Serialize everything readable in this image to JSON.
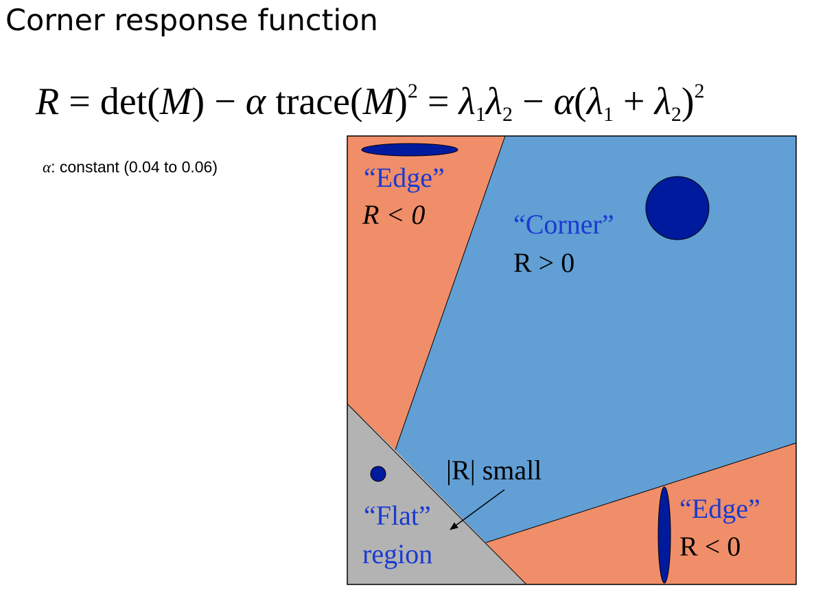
{
  "title": "Corner response function",
  "formula": {
    "lhs": "R",
    "equals_1": "=",
    "det": "det(",
    "m1": "M",
    "close1": ")",
    "minus_1": "−",
    "alpha_1": "α",
    "trace": " trace(",
    "m2": "M",
    "close2": ")",
    "sq_1": "2",
    "equals_2": "=",
    "lambda_a": "λ",
    "sub_1a": "1",
    "lambda_b": "λ",
    "sub_2a": "2",
    "minus_2": "−",
    "alpha_2": "α",
    "open_paren": "(",
    "lambda_c": "λ",
    "sub_1b": "1",
    "plus": "+",
    "lambda_d": "λ",
    "sub_2b": "2",
    "close_paren": ")",
    "sq_2": "2"
  },
  "constant_note": {
    "symbol": "α",
    "text": ": constant (0.04 to 0.06)"
  },
  "regions": {
    "edge_top": {
      "name": "“Edge”",
      "condition": "R < 0"
    },
    "corner": {
      "name": "“Corner”",
      "condition": "R > 0"
    },
    "flat": {
      "name_line1": "“Flat”",
      "name_line2": "region",
      "annotation": "|R| small"
    },
    "edge_bottom": {
      "name": "“Edge”",
      "condition": "R < 0"
    }
  },
  "colors": {
    "edge_region": "#F08E69",
    "corner_region": "#619FD5",
    "flat_region": "#B3B3B3",
    "ellipse_fill": "#001A9E",
    "region_label": "#1A3AD0",
    "border": "#000000"
  }
}
